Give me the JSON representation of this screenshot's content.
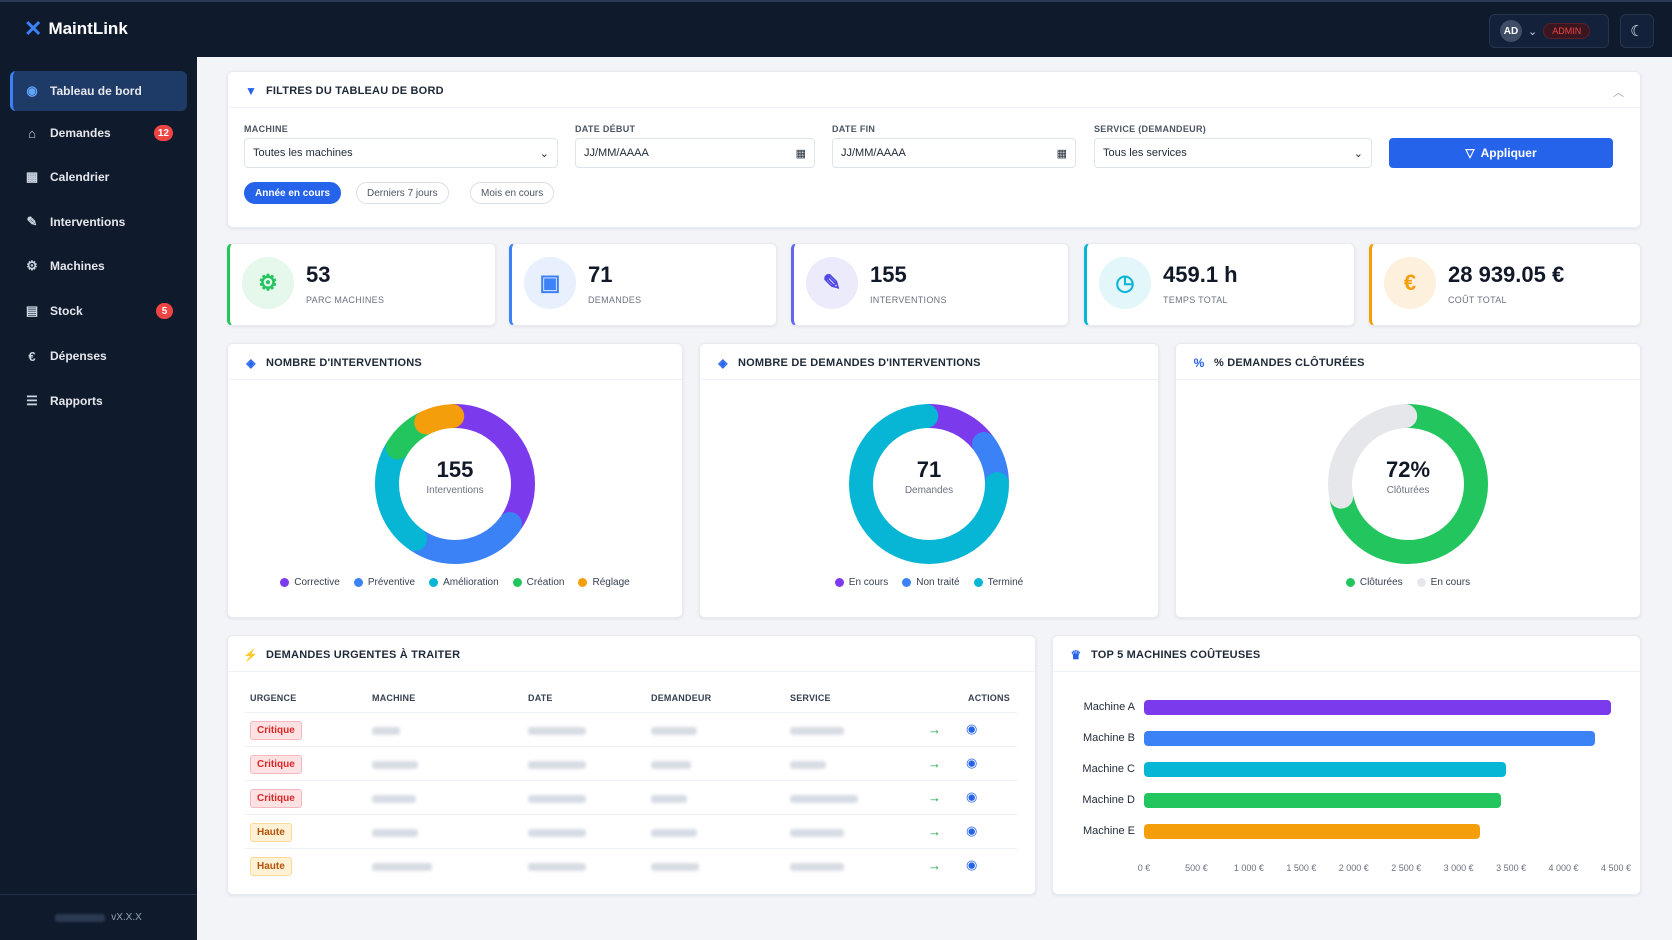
{
  "app": {
    "name": "MaintLink"
  },
  "topbar": {
    "avatar_initials": "AD",
    "role_badge": "ADMIN"
  },
  "sidebar": {
    "items": [
      {
        "label": "Tableau de bord",
        "icon": "dashboard-icon",
        "active": true,
        "badge": ""
      },
      {
        "label": "Demandes",
        "icon": "inbox-icon",
        "badge": "12"
      },
      {
        "label": "Calendrier",
        "icon": "calendar-icon",
        "badge": ""
      },
      {
        "label": "Interventions",
        "icon": "wrench-icon",
        "badge": ""
      },
      {
        "label": "Machines",
        "icon": "machines-icon",
        "badge": ""
      },
      {
        "label": "Stock",
        "icon": "boxes-icon",
        "badge": "5"
      },
      {
        "label": "Dépenses",
        "icon": "euro-icon",
        "badge": ""
      },
      {
        "label": "Rapports",
        "icon": "chart-icon",
        "badge": ""
      }
    ],
    "version": "vX.X.X"
  },
  "filters": {
    "title": "FILTRES DU TABLEAU DE BORD",
    "machine": {
      "label": "MACHINE",
      "value": "Toutes les machines"
    },
    "date_start": {
      "label": "DATE DÉBUT",
      "placeholder": "JJ/MM/AAAA"
    },
    "date_end": {
      "label": "DATE FIN",
      "placeholder": "JJ/MM/AAAA"
    },
    "service": {
      "label": "SERVICE (DEMANDEUR)",
      "value": "Tous les services"
    },
    "apply_label": "Appliquer",
    "chips": [
      {
        "label": "Année en cours",
        "active": true
      },
      {
        "label": "Derniers 7 jours",
        "active": false
      },
      {
        "label": "Mois en cours",
        "active": false
      }
    ]
  },
  "kpis": [
    {
      "value": "53",
      "label": "PARC MACHINES",
      "icon": "gears-icon",
      "color": "#22c55e",
      "bg": "#e6f7ec"
    },
    {
      "value": "71",
      "label": "DEMANDES",
      "icon": "clipboard-icon",
      "color": "#3b82f6",
      "bg": "#e8effd"
    },
    {
      "value": "155",
      "label": "INTERVENTIONS",
      "icon": "wrench-icon",
      "color": "#4f46e5",
      "bg": "#ecebfb"
    },
    {
      "value": "459.1 h",
      "label": "TEMPS TOTAL",
      "icon": "clock-icon",
      "color": "#06b6d4",
      "bg": "#e3f6fa"
    },
    {
      "value": "28 939.05 €",
      "label": "COÛT TOTAL",
      "icon": "euro-icon",
      "color": "#f59e0b",
      "bg": "#fdf1de"
    }
  ],
  "donuts": [
    {
      "title": "NOMBRE D'INTERVENTIONS",
      "center_value": "155",
      "center_label": "Interventions",
      "segments": [
        {
          "name": "Corrective",
          "value": 0.35,
          "color": "#7c3aed"
        },
        {
          "name": "Préventive",
          "value": 0.25,
          "color": "#3b82f6"
        },
        {
          "name": "Amélioration",
          "value": 0.24,
          "color": "#06b6d4"
        },
        {
          "name": "Création",
          "value": 0.09,
          "color": "#22c55e"
        },
        {
          "name": "Réglage",
          "value": 0.07,
          "color": "#f59e0b"
        }
      ]
    },
    {
      "title": "NOMBRE DE DEMANDES D'INTERVENTIONS",
      "center_value": "71",
      "center_label": "Demandes",
      "segments": [
        {
          "name": "En cours",
          "value": 0.15,
          "color": "#7c3aed"
        },
        {
          "name": "Non traité",
          "value": 0.1,
          "color": "#3b82f6"
        },
        {
          "name": "Terminé",
          "value": 0.75,
          "color": "#06b6d4"
        }
      ]
    },
    {
      "title": "% DEMANDES CLÔTURÉES",
      "center_value": "72%",
      "center_label": "Clôturées",
      "segments": [
        {
          "name": "Clôturées",
          "value": 0.72,
          "color": "#22c55e"
        },
        {
          "name": "En cours",
          "value": 0.28,
          "color": "#e5e7eb"
        }
      ]
    }
  ],
  "urgent": {
    "title": "DEMANDES URGENTES À TRAITER",
    "headers": [
      "URGENCE",
      "MACHINE",
      "DATE",
      "DEMANDEUR",
      "SERVICE",
      "ACTIONS"
    ],
    "rows": [
      {
        "urgency": "Critique",
        "level": "crit"
      },
      {
        "urgency": "Critique",
        "level": "crit"
      },
      {
        "urgency": "Critique",
        "level": "crit"
      },
      {
        "urgency": "Haute",
        "level": "haute"
      },
      {
        "urgency": "Haute",
        "level": "haute"
      }
    ]
  },
  "top_machines": {
    "title": "TOP 5 MACHINES COÛTEUSES",
    "chart_data": {
      "type": "bar",
      "orientation": "horizontal",
      "categories": [
        "Machine A",
        "Machine B",
        "Machine C",
        "Machine D",
        "Machine E"
      ],
      "values": [
        4450,
        4300,
        3450,
        3400,
        3200
      ],
      "colors": [
        "#7c3aed",
        "#3b82f6",
        "#06b6d4",
        "#22c55e",
        "#f59e0b"
      ],
      "xlim": [
        0,
        4500
      ],
      "xticks": [
        "0 €",
        "500 €",
        "1 000 €",
        "1 500 €",
        "2 000 €",
        "2 500 €",
        "3 000 €",
        "3 500 €",
        "4 000 €",
        "4 500 €"
      ]
    }
  }
}
